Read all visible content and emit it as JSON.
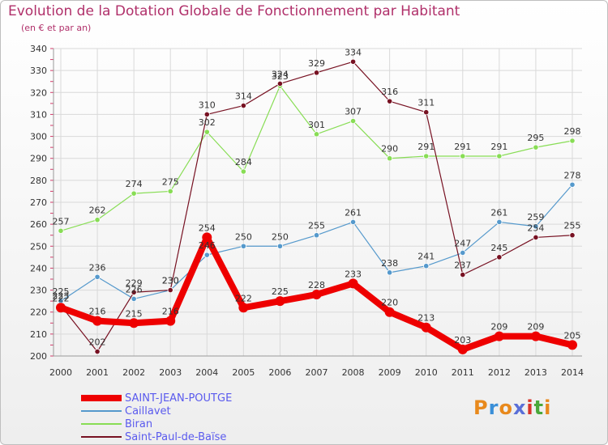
{
  "header": {
    "title": "Evolution de la Dotation Globale de Fonctionnement par Habitant",
    "subtitle": "(en € et par an)"
  },
  "logo": {
    "text": "Proxiti"
  },
  "chart_data": {
    "type": "line",
    "categories": [
      "2000",
      "2001",
      "2002",
      "2003",
      "2004",
      "2005",
      "2006",
      "2007",
      "2008",
      "2009",
      "2010",
      "2011",
      "2012",
      "2013",
      "2014"
    ],
    "ylim": [
      200,
      340
    ],
    "yticks": [
      200,
      210,
      220,
      230,
      240,
      250,
      260,
      270,
      280,
      290,
      300,
      310,
      320,
      330,
      340
    ],
    "grid": true,
    "legend_position": "bottom-left",
    "series": [
      {
        "name": "Biran",
        "color": "#88dd55",
        "width": 1.2,
        "values": [
          257,
          262,
          274,
          275,
          302,
          284,
          323,
          301,
          307,
          290,
          291,
          291,
          291,
          295,
          298
        ]
      },
      {
        "name": "Caillavet",
        "color": "#5599cc",
        "width": 1.2,
        "values": [
          225,
          236,
          226,
          230,
          246,
          250,
          250,
          255,
          261,
          238,
          241,
          247,
          261,
          259,
          278
        ]
      },
      {
        "name": "Saint-Paul-de-Baïse",
        "color": "#771122",
        "width": 1.2,
        "values": [
          223,
          202,
          229,
          230,
          310,
          314,
          324,
          329,
          334,
          316,
          311,
          237,
          245,
          254,
          255
        ]
      },
      {
        "name": "SAINT-JEAN-POUTGE",
        "color": "#ee0000",
        "width": 8,
        "values": [
          222,
          216,
          215,
          216,
          254,
          222,
          225,
          228,
          233,
          220,
          213,
          203,
          209,
          209,
          205
        ]
      }
    ],
    "legend": [
      "SAINT-JEAN-POUTGE",
      "Caillavet",
      "Biran",
      "Saint-Paul-de-Baïse"
    ]
  }
}
